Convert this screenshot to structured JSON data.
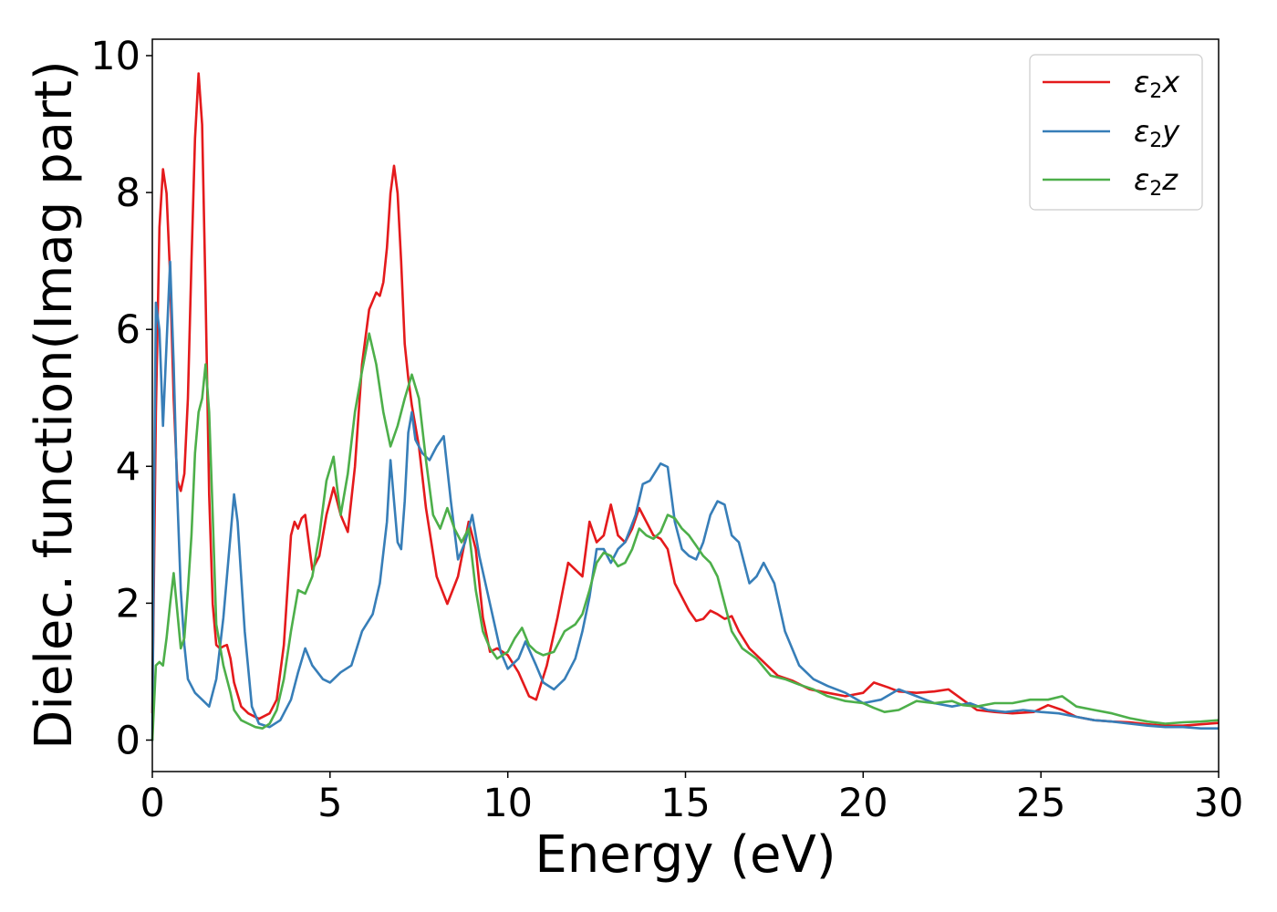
{
  "chart_data": {
    "type": "line",
    "title": "",
    "xlabel": "Energy (eV)",
    "ylabel": "Dielec. function(Imag part)",
    "xlim": [
      0,
      30
    ],
    "ylim": [
      -0.45,
      10.25
    ],
    "xticks": [
      "0",
      "5",
      "10",
      "15",
      "20",
      "25",
      "30"
    ],
    "yticks": [
      "0",
      "2",
      "4",
      "6",
      "8",
      "10"
    ],
    "grid": false,
    "legend_position": "top-right",
    "series": [
      {
        "name": "ε2x",
        "legend_base": "ε",
        "legend_sub": "2",
        "legend_suffix": "x",
        "color": "#e41a1c",
        "x": [
          0,
          0.1,
          0.2,
          0.3,
          0.4,
          0.5,
          0.6,
          0.7,
          0.8,
          0.9,
          1.0,
          1.1,
          1.2,
          1.3,
          1.4,
          1.5,
          1.6,
          1.7,
          1.8,
          1.9,
          2.0,
          2.1,
          2.2,
          2.3,
          2.5,
          2.7,
          3.0,
          3.3,
          3.5,
          3.7,
          3.9,
          4.0,
          4.1,
          4.2,
          4.3,
          4.5,
          4.7,
          4.9,
          5.1,
          5.3,
          5.5,
          5.7,
          5.9,
          6.1,
          6.3,
          6.4,
          6.5,
          6.6,
          6.7,
          6.8,
          6.9,
          7.0,
          7.1,
          7.2,
          7.3,
          7.5,
          7.7,
          8.0,
          8.3,
          8.6,
          8.9,
          9.1,
          9.3,
          9.5,
          9.7,
          10.0,
          10.3,
          10.6,
          10.8,
          11.1,
          11.4,
          11.7,
          11.9,
          12.1,
          12.3,
          12.5,
          12.7,
          12.9,
          13.1,
          13.3,
          13.5,
          13.7,
          13.9,
          14.1,
          14.3,
          14.5,
          14.7,
          14.9,
          15.1,
          15.3,
          15.5,
          15.7,
          15.9,
          16.1,
          16.3,
          16.5,
          16.8,
          17.2,
          17.6,
          18.0,
          18.5,
          19.0,
          19.5,
          20.0,
          20.3,
          20.7,
          21.0,
          21.5,
          22.0,
          22.4,
          22.8,
          23.2,
          23.7,
          24.2,
          24.8,
          25.2,
          25.6,
          26.0,
          26.5,
          27.0,
          27.5,
          28.0,
          28.5,
          29.0,
          29.5,
          30.0
        ],
        "y": [
          0.4,
          4.8,
          7.5,
          8.35,
          8.0,
          6.8,
          5.0,
          3.8,
          3.65,
          3.9,
          5.0,
          7.0,
          8.8,
          9.75,
          9.0,
          6.5,
          3.6,
          2.0,
          1.4,
          1.35,
          1.38,
          1.4,
          1.2,
          0.85,
          0.5,
          0.4,
          0.32,
          0.4,
          0.6,
          1.4,
          3.0,
          3.2,
          3.1,
          3.25,
          3.3,
          2.5,
          2.7,
          3.3,
          3.7,
          3.3,
          3.05,
          4.0,
          5.5,
          6.3,
          6.55,
          6.5,
          6.7,
          7.2,
          8.0,
          8.4,
          8.0,
          7.0,
          5.8,
          5.3,
          4.9,
          4.3,
          3.4,
          2.4,
          2.0,
          2.4,
          3.2,
          2.8,
          1.8,
          1.3,
          1.35,
          1.25,
          1.0,
          0.65,
          0.6,
          1.1,
          1.8,
          2.6,
          2.5,
          2.4,
          3.2,
          2.9,
          3.0,
          3.45,
          3.0,
          2.9,
          3.1,
          3.4,
          3.2,
          3.0,
          2.95,
          2.8,
          2.3,
          2.1,
          1.9,
          1.75,
          1.78,
          1.9,
          1.85,
          1.78,
          1.82,
          1.6,
          1.35,
          1.15,
          0.95,
          0.88,
          0.75,
          0.7,
          0.65,
          0.7,
          0.85,
          0.78,
          0.72,
          0.7,
          0.72,
          0.75,
          0.6,
          0.45,
          0.42,
          0.4,
          0.42,
          0.52,
          0.45,
          0.35,
          0.3,
          0.28,
          0.27,
          0.24,
          0.22,
          0.22,
          0.24,
          0.26
        ]
      },
      {
        "name": "ε2y",
        "legend_base": "ε",
        "legend_sub": "2",
        "legend_suffix": "y",
        "color": "#377eb8",
        "x": [
          0,
          0.05,
          0.1,
          0.2,
          0.3,
          0.4,
          0.5,
          0.6,
          0.7,
          0.8,
          0.9,
          1.0,
          1.2,
          1.4,
          1.6,
          1.8,
          2.0,
          2.2,
          2.3,
          2.4,
          2.6,
          2.8,
          3.0,
          3.3,
          3.6,
          3.9,
          4.1,
          4.3,
          4.5,
          4.8,
          5.0,
          5.3,
          5.6,
          5.9,
          6.2,
          6.4,
          6.6,
          6.7,
          6.8,
          6.9,
          7.0,
          7.1,
          7.2,
          7.3,
          7.4,
          7.6,
          7.8,
          8.0,
          8.2,
          8.4,
          8.6,
          8.8,
          9.0,
          9.2,
          9.5,
          9.8,
          10.0,
          10.3,
          10.5,
          10.8,
          11.0,
          11.3,
          11.6,
          11.9,
          12.1,
          12.3,
          12.5,
          12.7,
          12.9,
          13.1,
          13.3,
          13.6,
          13.8,
          14.0,
          14.3,
          14.5,
          14.7,
          14.9,
          15.1,
          15.3,
          15.5,
          15.7,
          15.9,
          16.1,
          16.3,
          16.5,
          16.8,
          17.0,
          17.2,
          17.5,
          17.8,
          18.2,
          18.6,
          19.0,
          19.5,
          20.0,
          20.5,
          21.0,
          21.5,
          22.0,
          22.5,
          23.0,
          23.5,
          24.0,
          24.5,
          25.0,
          25.5,
          26.0,
          26.5,
          27.0,
          27.5,
          28.0,
          28.5,
          29.0,
          29.5,
          30.0
        ],
        "y": [
          0.0,
          3.5,
          6.4,
          6.0,
          4.6,
          5.8,
          7.0,
          5.5,
          3.6,
          2.2,
          1.4,
          0.9,
          0.7,
          0.6,
          0.5,
          0.9,
          1.8,
          3.0,
          3.6,
          3.2,
          1.6,
          0.5,
          0.25,
          0.2,
          0.3,
          0.6,
          1.0,
          1.35,
          1.1,
          0.9,
          0.85,
          1.0,
          1.1,
          1.6,
          1.85,
          2.3,
          3.2,
          4.1,
          3.5,
          2.9,
          2.8,
          3.5,
          4.5,
          4.8,
          4.4,
          4.2,
          4.1,
          4.3,
          4.45,
          3.5,
          2.65,
          2.9,
          3.3,
          2.7,
          2.0,
          1.3,
          1.05,
          1.2,
          1.45,
          1.1,
          0.85,
          0.75,
          0.9,
          1.2,
          1.6,
          2.1,
          2.8,
          2.8,
          2.6,
          2.8,
          2.9,
          3.3,
          3.75,
          3.8,
          4.05,
          4.0,
          3.2,
          2.8,
          2.7,
          2.65,
          2.9,
          3.3,
          3.5,
          3.45,
          3.0,
          2.9,
          2.3,
          2.4,
          2.6,
          2.3,
          1.6,
          1.1,
          0.9,
          0.8,
          0.7,
          0.55,
          0.6,
          0.75,
          0.65,
          0.55,
          0.5,
          0.55,
          0.45,
          0.42,
          0.45,
          0.42,
          0.4,
          0.35,
          0.3,
          0.28,
          0.25,
          0.22,
          0.2,
          0.2,
          0.18,
          0.18
        ]
      },
      {
        "name": "ε2z",
        "legend_base": "ε",
        "legend_sub": "2",
        "legend_suffix": "z",
        "color": "#4daf4a",
        "x": [
          0,
          0.1,
          0.2,
          0.3,
          0.4,
          0.5,
          0.6,
          0.7,
          0.8,
          0.9,
          1.0,
          1.1,
          1.2,
          1.3,
          1.4,
          1.5,
          1.6,
          1.7,
          1.8,
          1.9,
          2.0,
          2.1,
          2.2,
          2.3,
          2.5,
          2.7,
          2.9,
          3.1,
          3.3,
          3.5,
          3.7,
          3.9,
          4.1,
          4.3,
          4.5,
          4.7,
          4.9,
          5.1,
          5.2,
          5.3,
          5.5,
          5.7,
          5.9,
          6.1,
          6.3,
          6.5,
          6.7,
          6.9,
          7.1,
          7.3,
          7.5,
          7.7,
          7.9,
          8.1,
          8.3,
          8.5,
          8.7,
          8.9,
          9.1,
          9.3,
          9.5,
          9.7,
          10.0,
          10.2,
          10.4,
          10.6,
          10.8,
          11.0,
          11.3,
          11.6,
          11.9,
          12.1,
          12.3,
          12.5,
          12.7,
          12.9,
          13.1,
          13.3,
          13.5,
          13.7,
          13.9,
          14.1,
          14.3,
          14.5,
          14.7,
          14.9,
          15.1,
          15.3,
          15.5,
          15.7,
          15.9,
          16.1,
          16.3,
          16.6,
          17.0,
          17.4,
          17.8,
          18.2,
          18.6,
          19.0,
          19.5,
          20.0,
          20.3,
          20.6,
          21.0,
          21.5,
          22.0,
          22.5,
          22.8,
          23.2,
          23.7,
          24.2,
          24.7,
          25.2,
          25.6,
          26.0,
          26.5,
          27.0,
          27.5,
          28.0,
          28.5,
          29.0,
          29.5,
          30.0
        ],
        "y": [
          0.0,
          1.1,
          1.15,
          1.1,
          1.5,
          2.0,
          2.45,
          1.9,
          1.35,
          1.5,
          2.2,
          3.0,
          4.2,
          4.8,
          5.0,
          5.5,
          4.8,
          3.3,
          1.7,
          1.4,
          1.1,
          0.9,
          0.7,
          0.45,
          0.3,
          0.25,
          0.2,
          0.18,
          0.25,
          0.45,
          0.9,
          1.6,
          2.2,
          2.15,
          2.4,
          3.0,
          3.8,
          4.15,
          3.7,
          3.3,
          3.9,
          4.8,
          5.4,
          5.95,
          5.5,
          4.8,
          4.3,
          4.6,
          5.0,
          5.35,
          5.0,
          4.1,
          3.3,
          3.1,
          3.4,
          3.1,
          2.9,
          3.1,
          2.2,
          1.6,
          1.35,
          1.2,
          1.3,
          1.5,
          1.65,
          1.4,
          1.3,
          1.25,
          1.3,
          1.6,
          1.7,
          1.85,
          2.2,
          2.6,
          2.75,
          2.7,
          2.55,
          2.6,
          2.8,
          3.1,
          3.0,
          2.95,
          3.05,
          3.3,
          3.25,
          3.1,
          3.0,
          2.85,
          2.7,
          2.6,
          2.4,
          2.0,
          1.6,
          1.35,
          1.2,
          0.95,
          0.9,
          0.82,
          0.75,
          0.65,
          0.58,
          0.55,
          0.48,
          0.42,
          0.45,
          0.58,
          0.55,
          0.58,
          0.52,
          0.5,
          0.55,
          0.55,
          0.6,
          0.6,
          0.65,
          0.5,
          0.45,
          0.4,
          0.33,
          0.28,
          0.25,
          0.27,
          0.28,
          0.3
        ]
      }
    ]
  }
}
